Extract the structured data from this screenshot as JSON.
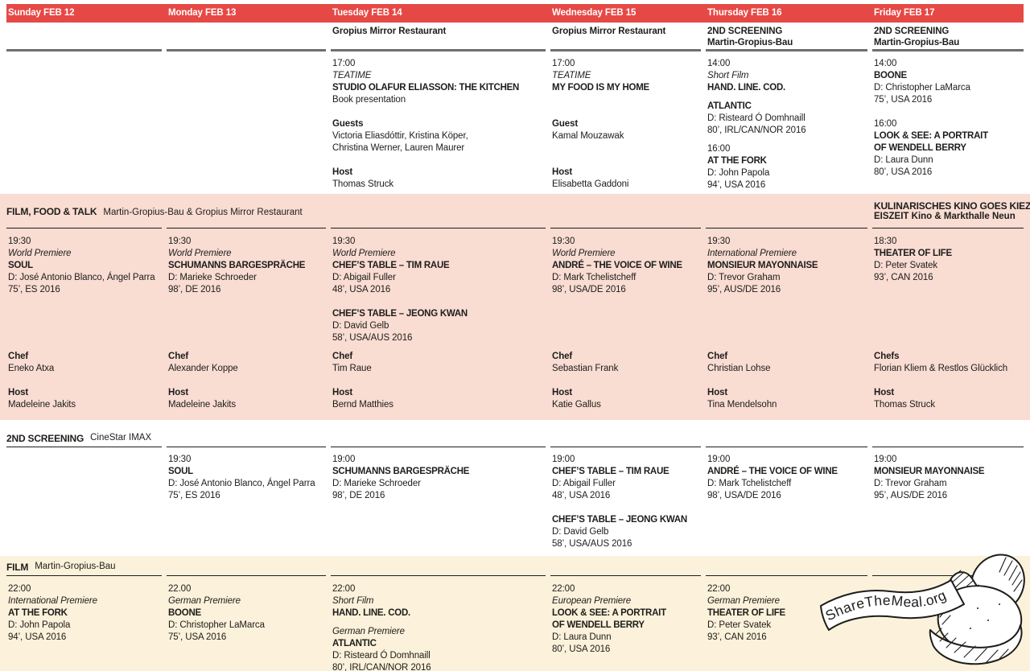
{
  "theme": {
    "red": "#e64945",
    "pink": "#f9dcd2",
    "cream": "#fcf1da",
    "rule_gray": "#6f6f6f",
    "ink": "#1d1d1b"
  },
  "days": [
    "Sunday FEB 12",
    "Monday FEB 13",
    "Tuesday FEB 14",
    "Wednesday FEB 15",
    "Thursday FEB 16",
    "Friday FEB 17"
  ],
  "top": {
    "venues": [
      [],
      [],
      [
        {
          "style": "venue",
          "text": "Gropius Mirror Restaurant"
        }
      ],
      [
        {
          "style": "venue",
          "text": "Gropius Mirror Restaurant"
        }
      ],
      [
        {
          "style": "venue",
          "text": "2ND SCREENING"
        },
        {
          "style": "venue",
          "text": "Martin-Gropius-Bau"
        }
      ],
      [
        {
          "style": "venue",
          "text": "2ND SCREENING"
        },
        {
          "style": "venue",
          "text": "Martin-Gropius-Bau"
        }
      ]
    ],
    "cells": [
      [],
      [],
      [
        {
          "style": "time",
          "text": "17:00"
        },
        {
          "style": "premiere",
          "text": "TEATIME"
        },
        {
          "style": "title",
          "text": "STUDIO OLAFUR ELIASSON: THE KITCHEN"
        },
        {
          "style": "plain",
          "text": "Book presentation"
        },
        {
          "style": "gap"
        },
        {
          "style": "label",
          "text": "Guests"
        },
        {
          "style": "plain",
          "text": "Victoria Eliasdóttir, Kristina Köper,"
        },
        {
          "style": "plain",
          "text": "Christina Werner, Lauren Maurer"
        },
        {
          "style": "gap"
        },
        {
          "style": "label",
          "text": "Host"
        },
        {
          "style": "plain",
          "text": "Thomas Struck"
        }
      ],
      [
        {
          "style": "time",
          "text": "17:00"
        },
        {
          "style": "premiere",
          "text": "TEATIME"
        },
        {
          "style": "title",
          "text": "MY FOOD IS MY HOME"
        },
        {
          "style": "gap"
        },
        {
          "style": "gap"
        },
        {
          "style": "label",
          "text": "Guest"
        },
        {
          "style": "plain",
          "text": "Kamal Mouzawak"
        },
        {
          "style": "gap"
        },
        {
          "style": "gap"
        },
        {
          "style": "label",
          "text": "Host"
        },
        {
          "style": "plain",
          "text": "Elisabetta Gaddoni"
        }
      ],
      [
        {
          "style": "time",
          "text": "14:00"
        },
        {
          "style": "premiere",
          "text": "Short Film"
        },
        {
          "style": "title",
          "text": "HAND. LINE. COD."
        },
        {
          "style": "gaps"
        },
        {
          "style": "title",
          "text": "ATLANTIC"
        },
        {
          "style": "plain",
          "text": "D: Risteard Ó Domhnaill"
        },
        {
          "style": "plain",
          "text": "80’, IRL/CAN/NOR 2016"
        },
        {
          "style": "gaps"
        },
        {
          "style": "time",
          "text": "16:00"
        },
        {
          "style": "title",
          "text": "AT THE FORK"
        },
        {
          "style": "plain",
          "text": "D: John Papola"
        },
        {
          "style": "plain",
          "text": "94’, USA 2016"
        }
      ],
      [
        {
          "style": "time",
          "text": "14:00"
        },
        {
          "style": "title",
          "text": "BOONE"
        },
        {
          "style": "plain",
          "text": "D: Christopher LaMarca"
        },
        {
          "style": "plain",
          "text": "75’, USA 2016"
        },
        {
          "style": "gap"
        },
        {
          "style": "time",
          "text": "16:00"
        },
        {
          "style": "title",
          "text": "LOOK & SEE: A PORTRAIT"
        },
        {
          "style": "title",
          "text": "OF WENDELL BERRY"
        },
        {
          "style": "plain",
          "text": "D: Laura Dunn"
        },
        {
          "style": "plain",
          "text": "80’, USA 2016"
        }
      ]
    ]
  },
  "fft": {
    "label": "FILM, FOOD & TALK",
    "venue": "Martin-Gropius-Bau & Gropius Mirror Restaurant",
    "right_label": "KULINARISCHES KINO GOES KIEZ",
    "right_venue": "EISZEIT Kino & Markthalle Neun",
    "films": [
      [
        {
          "style": "time",
          "text": "19:30"
        },
        {
          "style": "premiere",
          "text": "World Premiere"
        },
        {
          "style": "title",
          "text": "SOUL"
        },
        {
          "style": "plain",
          "text": "D: José Antonio Blanco, Ángel Parra"
        },
        {
          "style": "plain",
          "text": "75’, ES 2016"
        }
      ],
      [
        {
          "style": "time",
          "text": "19:30"
        },
        {
          "style": "premiere",
          "text": "World Premiere"
        },
        {
          "style": "title",
          "text": "SCHUMANNS BARGESPRÄCHE"
        },
        {
          "style": "plain",
          "text": "D: Marieke Schroeder"
        },
        {
          "style": "plain",
          "text": "98’, DE 2016"
        }
      ],
      [
        {
          "style": "time",
          "text": "19:30"
        },
        {
          "style": "premiere",
          "text": "World Premiere"
        },
        {
          "style": "title",
          "text": "CHEF’S TABLE – TIM RAUE"
        },
        {
          "style": "plain",
          "text": "D: Abigail Fuller"
        },
        {
          "style": "plain",
          "text": "48’, USA 2016"
        },
        {
          "style": "gap"
        },
        {
          "style": "title",
          "text": "CHEF’S TABLE – JEONG KWAN"
        },
        {
          "style": "plain",
          "text": "D: David Gelb"
        },
        {
          "style": "plain",
          "text": "58’, USA/AUS 2016"
        }
      ],
      [
        {
          "style": "time",
          "text": "19:30"
        },
        {
          "style": "premiere",
          "text": "World Premiere"
        },
        {
          "style": "title",
          "text": "ANDRÉ – THE VOICE OF WINE"
        },
        {
          "style": "plain",
          "text": "D: Mark Tchelistcheff"
        },
        {
          "style": "plain",
          "text": "98’, USA/DE 2016"
        }
      ],
      [
        {
          "style": "time",
          "text": "19:30"
        },
        {
          "style": "premiere",
          "text": "International Premiere"
        },
        {
          "style": "title",
          "text": "MONSIEUR MAYONNAISE"
        },
        {
          "style": "plain",
          "text": "D: Trevor Graham"
        },
        {
          "style": "plain",
          "text": "95’, AUS/DE 2016"
        }
      ],
      [
        {
          "style": "time",
          "text": "18:30"
        },
        {
          "style": "title",
          "text": "THEATER OF LIFE"
        },
        {
          "style": "plain",
          "text": "D: Peter Svatek"
        },
        {
          "style": "plain",
          "text": "93’, CAN 2016"
        }
      ]
    ],
    "chefs": [
      {
        "label": "Chef",
        "name": "Eneko Atxa"
      },
      {
        "label": "Chef",
        "name": "Alexander Koppe"
      },
      {
        "label": "Chef",
        "name": "Tim Raue"
      },
      {
        "label": "Chef",
        "name": "Sebastian Frank"
      },
      {
        "label": "Chef",
        "name": "Christian Lohse"
      },
      {
        "label": "Chefs",
        "name": "Florian Kliem & Restlos Glücklich"
      }
    ],
    "hosts": [
      {
        "label": "Host",
        "name": "Madeleine Jakits"
      },
      {
        "label": "Host",
        "name": "Madeleine Jakits"
      },
      {
        "label": "Host",
        "name": "Bernd Matthies"
      },
      {
        "label": "Host",
        "name": "Katie Gallus"
      },
      {
        "label": "Host",
        "name": "Tina Mendelsohn"
      },
      {
        "label": "Host",
        "name": "Thomas Struck"
      }
    ]
  },
  "second": {
    "label": "2ND SCREENING",
    "venue": "CineStar IMAX",
    "cells": [
      [],
      [
        {
          "style": "time",
          "text": "19:30"
        },
        {
          "style": "title",
          "text": "SOUL"
        },
        {
          "style": "plain",
          "text": "D: José Antonio Blanco, Ángel Parra"
        },
        {
          "style": "plain",
          "text": "75’, ES 2016"
        }
      ],
      [
        {
          "style": "time",
          "text": "19:00"
        },
        {
          "style": "title",
          "text": "SCHUMANNS BARGESPRÄCHE"
        },
        {
          "style": "plain",
          "text": "D: Marieke Schroeder"
        },
        {
          "style": "plain",
          "text": "98’, DE 2016"
        }
      ],
      [
        {
          "style": "time",
          "text": "19:00"
        },
        {
          "style": "title",
          "text": "CHEF’S TABLE – TIM RAUE"
        },
        {
          "style": "plain",
          "text": "D: Abigail Fuller"
        },
        {
          "style": "plain",
          "text": "48’, USA 2016"
        },
        {
          "style": "gap"
        },
        {
          "style": "title",
          "text": "CHEF’S TABLE – JEONG KWAN"
        },
        {
          "style": "plain",
          "text": "D: David Gelb"
        },
        {
          "style": "plain",
          "text": "58’, USA/AUS 2016"
        }
      ],
      [
        {
          "style": "time",
          "text": "19:00"
        },
        {
          "style": "title",
          "text": "ANDRÉ – THE VOICE OF WINE"
        },
        {
          "style": "plain",
          "text": "D: Mark Tchelistcheff"
        },
        {
          "style": "plain",
          "text": "98’, USA/DE 2016"
        }
      ],
      [
        {
          "style": "time",
          "text": "19:00"
        },
        {
          "style": "title",
          "text": "MONSIEUR MAYONNAISE"
        },
        {
          "style": "plain",
          "text": "D: Trevor Graham"
        },
        {
          "style": "plain",
          "text": "95’, AUS/DE 2016"
        }
      ]
    ]
  },
  "film": {
    "label": "FILM",
    "venue": "Martin-Gropius-Bau",
    "logo_text": "ShareTheMeal.org",
    "cells": [
      [
        {
          "style": "time",
          "text": "22:00"
        },
        {
          "style": "premiere",
          "text": "International Premiere"
        },
        {
          "style": "title",
          "text": "AT THE FORK"
        },
        {
          "style": "plain",
          "text": "D: John Papola"
        },
        {
          "style": "plain",
          "text": "94’, USA 2016"
        }
      ],
      [
        {
          "style": "time",
          "text": "22.00"
        },
        {
          "style": "premiere",
          "text": "German Premiere"
        },
        {
          "style": "title",
          "text": "BOONE"
        },
        {
          "style": "plain",
          "text": "D: Christopher LaMarca"
        },
        {
          "style": "plain",
          "text": "75’, USA 2016"
        }
      ],
      [
        {
          "style": "time",
          "text": "22:00"
        },
        {
          "style": "premiere",
          "text": "Short Film"
        },
        {
          "style": "title",
          "text": "HAND. LINE. COD."
        },
        {
          "style": "gaps"
        },
        {
          "style": "premiere",
          "text": "German Premiere"
        },
        {
          "style": "title",
          "text": "ATLANTIC"
        },
        {
          "style": "plain",
          "text": "D: Risteard Ó Domhnaill"
        },
        {
          "style": "plain",
          "text": "80’, IRL/CAN/NOR 2016"
        }
      ],
      [
        {
          "style": "time",
          "text": "22:00"
        },
        {
          "style": "premiere",
          "text": "European Premiere"
        },
        {
          "style": "title",
          "text": "LOOK & SEE: A PORTRAIT"
        },
        {
          "style": "title",
          "text": "OF WENDELL BERRY"
        },
        {
          "style": "plain",
          "text": "D: Laura Dunn"
        },
        {
          "style": "plain",
          "text": "80’, USA 2016"
        }
      ],
      [
        {
          "style": "time",
          "text": "22:00"
        },
        {
          "style": "premiere",
          "text": "German Premiere"
        },
        {
          "style": "title",
          "text": "THEATER OF LIFE"
        },
        {
          "style": "plain",
          "text": "D: Peter Svatek"
        },
        {
          "style": "plain",
          "text": "93’, CAN 2016"
        }
      ],
      []
    ]
  }
}
